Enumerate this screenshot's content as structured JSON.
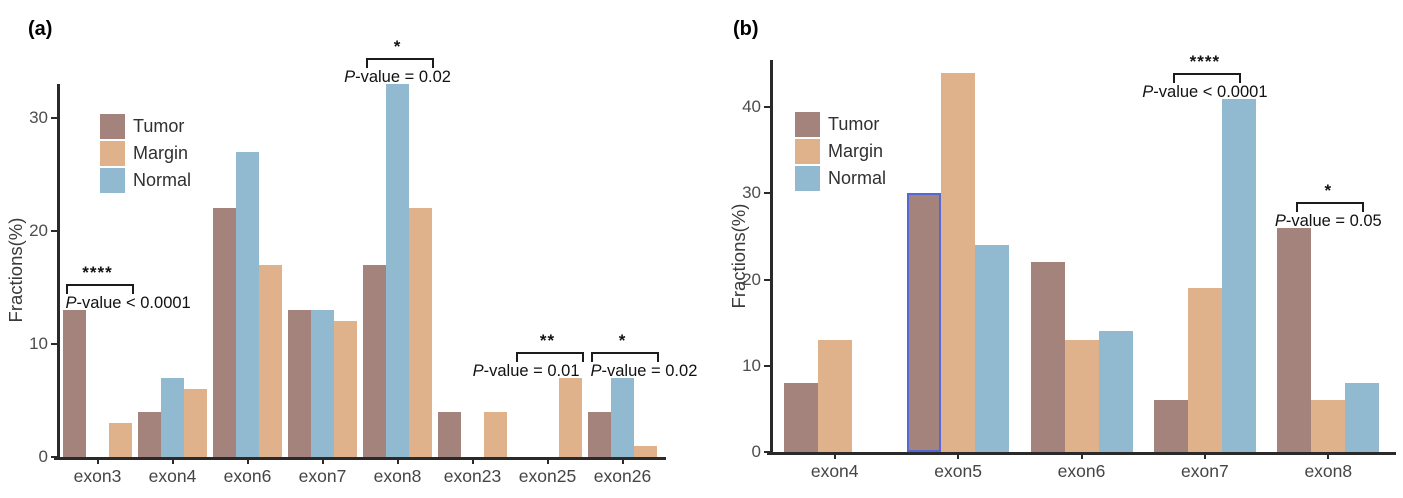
{
  "chart_data": [
    {
      "type": "bar",
      "panel_label": "(a)",
      "ylabel": "Fractions(%)",
      "categories": [
        "exon3",
        "exon4",
        "exon6",
        "exon7",
        "exon8",
        "exon23",
        "exon25",
        "exon26"
      ],
      "series": [
        {
          "name": "Tumor",
          "color": "#a5837d",
          "values": [
            13,
            4,
            22,
            13,
            17,
            4,
            null,
            4
          ]
        },
        {
          "name": "Margin",
          "color": "#dfb28b",
          "values": [
            3,
            6,
            17,
            12,
            22,
            4,
            7,
            1
          ]
        },
        {
          "name": "Normal",
          "color": "#91bad1",
          "values": [
            null,
            7,
            27,
            13,
            33,
            null,
            null,
            7
          ]
        }
      ],
      "slot_order": [
        "Tumor",
        "Normal",
        "Margin"
      ],
      "yticks": [
        0,
        10,
        20,
        30
      ],
      "ylim": [
        0,
        33
      ],
      "grid": false,
      "legend_position": "top-left-inside",
      "annotations": [
        {
          "category": "exon3",
          "stars": "****",
          "label": "P-value < 0.0001",
          "align": "left"
        },
        {
          "category": "exon8",
          "stars": "*",
          "label": "P-value = 0.02",
          "align": "center"
        },
        {
          "category": "exon25",
          "stars": "**",
          "label": "P-value = 0.01",
          "align": "right"
        },
        {
          "category": "exon26",
          "stars": "*",
          "label": "P-value = 0.02",
          "align": "left"
        }
      ],
      "highlight": null
    },
    {
      "type": "bar",
      "panel_label": "(b)",
      "ylabel": "Fractions(%)",
      "categories": [
        "exon4",
        "exon5",
        "exon6",
        "exon7",
        "exon8"
      ],
      "series": [
        {
          "name": "Tumor",
          "color": "#a5837d",
          "values": [
            8,
            30,
            22,
            6,
            26
          ]
        },
        {
          "name": "Margin",
          "color": "#dfb28b",
          "values": [
            13,
            44,
            13,
            19,
            6
          ]
        },
        {
          "name": "Normal",
          "color": "#91bad1",
          "values": [
            null,
            24,
            14,
            41,
            8
          ]
        }
      ],
      "slot_order": [
        "Tumor",
        "Margin",
        "Normal"
      ],
      "yticks": [
        0,
        10,
        20,
        30,
        40
      ],
      "ylim": [
        0,
        45
      ],
      "grid": false,
      "legend_position": "top-left-inside",
      "annotations": [
        {
          "category": "exon7",
          "stars": "****",
          "label": "P-value < 0.0001",
          "align": "center"
        },
        {
          "category": "exon8",
          "stars": "*",
          "label": "P-value = 0.05",
          "align": "center"
        }
      ],
      "highlight": {
        "category": "exon5",
        "series": "Tumor",
        "outline_color": "#5668d6"
      }
    }
  ]
}
